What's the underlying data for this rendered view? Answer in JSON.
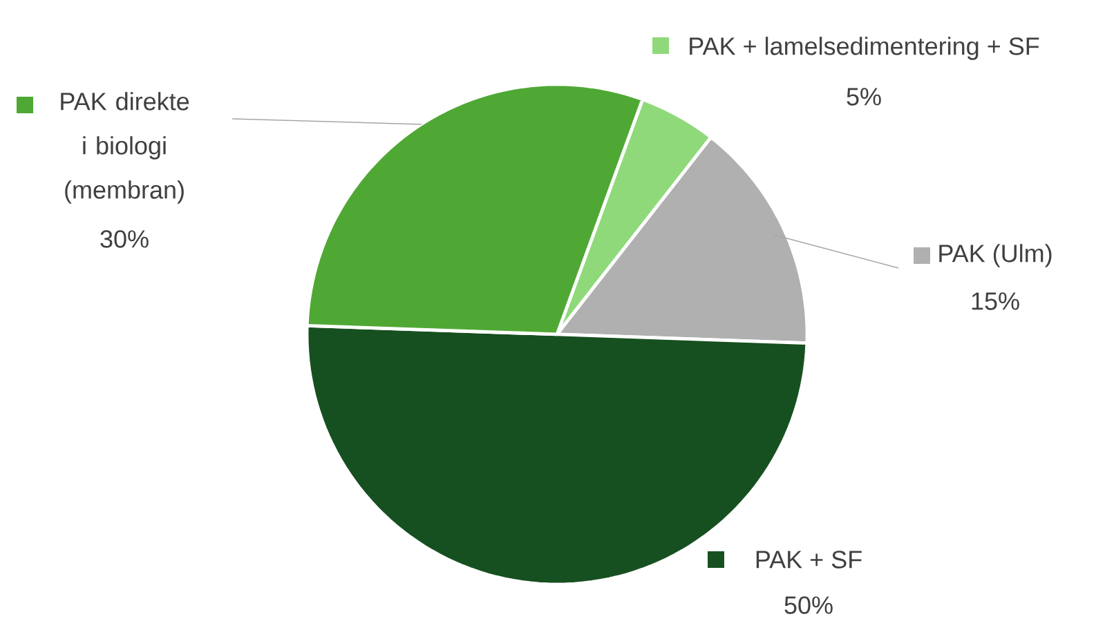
{
  "chart_data": {
    "type": "pie",
    "legend": "right",
    "categories": [
      "PAK + lamelsedimentering + SF",
      "PAK (Ulm)",
      "PAK + SF",
      "PAK direkte i biologi (membran)"
    ],
    "values": [
      5,
      15,
      50,
      30
    ],
    "value_labels": [
      "5%",
      "15%",
      "50%",
      "30%"
    ],
    "colors": [
      "#8fd97a",
      "#b0b0b0",
      "#175020",
      "#4fa834"
    ]
  }
}
